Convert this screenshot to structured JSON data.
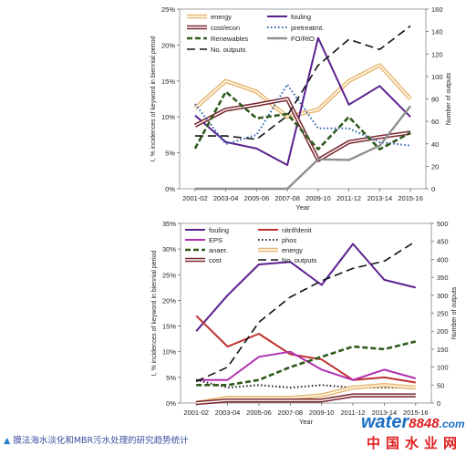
{
  "caption": "膜法海水淡化和MBR污水处理的研究趋势统计",
  "watermark": {
    "part1": "water",
    "part2": "8848",
    "part3": ".com",
    "cn": "中国水业网"
  },
  "chart_data": [
    {
      "type": "line",
      "categories": [
        "2001-02",
        "2003-04",
        "2005-06",
        "2007-08",
        "2009-10",
        "2011-12",
        "2013-14",
        "2015-16"
      ],
      "xlabel": "Year",
      "ylabel": "I, % incidences of keyword in biennial period",
      "y2label": "Number of outputs",
      "ylim": [
        0,
        25
      ],
      "yticks": [
        "0%",
        "5%",
        "10%",
        "15%",
        "20%",
        "25%"
      ],
      "y2lim": [
        0,
        160
      ],
      "y2ticks": [
        "0",
        "20",
        "40",
        "60",
        "80",
        "100",
        "120",
        "140",
        "160"
      ],
      "legend_cols": 2,
      "series": [
        {
          "name": "energy",
          "color": "#e8b870",
          "style": "double",
          "axis": "left",
          "values": [
            11.2,
            15.0,
            13.5,
            10.0,
            11.0,
            15.0,
            17.2,
            12.5
          ]
        },
        {
          "name": "fouling",
          "color": "#5a2090",
          "style": "solid",
          "axis": "left",
          "values": [
            10.2,
            6.5,
            5.6,
            3.3,
            21.0,
            11.7,
            14.3,
            10.0
          ]
        },
        {
          "name": "cost/econ",
          "color": "#7a2830",
          "style": "double",
          "axis": "left",
          "values": [
            8.8,
            11.0,
            11.7,
            12.5,
            4.0,
            6.5,
            7.2,
            7.8
          ]
        },
        {
          "name": "pretreatmt.",
          "color": "#2a5fb0",
          "style": "dotted",
          "axis": "left",
          "values": [
            11.8,
            6.2,
            7.5,
            14.5,
            8.4,
            8.4,
            6.5,
            6.0
          ]
        },
        {
          "name": "Renewables",
          "color": "#2e5a1e",
          "style": "dashed",
          "axis": "left",
          "values": [
            5.6,
            13.5,
            9.8,
            10.4,
            5.5,
            10.0,
            5.5,
            7.8
          ]
        },
        {
          "name": "FO/RtO",
          "color": "#909090",
          "style": "thick",
          "axis": "left",
          "values": [
            0,
            0,
            0,
            0,
            4.1,
            4.0,
            6.0,
            11.5
          ]
        },
        {
          "name": "No. outputs",
          "color": "#111111",
          "style": "longdash",
          "axis": "right",
          "values": [
            47,
            47,
            44,
            65,
            110,
            133,
            124,
            145
          ]
        }
      ]
    },
    {
      "type": "line",
      "categories": [
        "2001-02",
        "2003-04",
        "2005-06",
        "2007-08",
        "2009-10",
        "2011-12",
        "2013-14",
        "2015-16"
      ],
      "xlabel": "Year",
      "ylabel": "I, % incidences of keyword in biennial period",
      "y2label": "Number of outputs",
      "ylim": [
        0,
        35
      ],
      "yticks": [
        "0%",
        "5%",
        "10%",
        "15%",
        "20%",
        "25%",
        "30%",
        "35%"
      ],
      "y2lim": [
        0,
        500
      ],
      "y2ticks": [
        "0",
        "50",
        "100",
        "150",
        "200",
        "250",
        "300",
        "350",
        "400",
        "450",
        "500"
      ],
      "legend_cols": 2,
      "series": [
        {
          "name": "fouling",
          "color": "#5a2090",
          "style": "solid",
          "axis": "left",
          "values": [
            14.0,
            21.0,
            27.0,
            27.5,
            23.0,
            31.0,
            24.0,
            22.5
          ]
        },
        {
          "name": "nitrif/denit",
          "color": "#c03030",
          "style": "solid",
          "axis": "left",
          "values": [
            17.0,
            11.0,
            13.5,
            9.5,
            8.5,
            4.5,
            5.0,
            4.0
          ]
        },
        {
          "name": "EPS",
          "color": "#b030b0",
          "style": "solid",
          "axis": "left",
          "values": [
            4.5,
            4.5,
            9.0,
            10.0,
            6.5,
            4.5,
            6.5,
            4.8
          ]
        },
        {
          "name": "phos",
          "color": "#222222",
          "style": "dotted",
          "axis": "left",
          "values": [
            4.5,
            3.0,
            3.5,
            3.0,
            3.5,
            3.0,
            3.0,
            3.0
          ]
        },
        {
          "name": "anaer.",
          "color": "#2e5a1e",
          "style": "dashed",
          "axis": "left",
          "values": [
            3.5,
            3.5,
            4.5,
            7.0,
            9.0,
            11.0,
            10.5,
            12.0
          ]
        },
        {
          "name": "energy",
          "color": "#e8b870",
          "style": "double",
          "axis": "left",
          "values": [
            0,
            1.0,
            1.0,
            1.0,
            1.5,
            3.0,
            3.5,
            3.0
          ]
        },
        {
          "name": "cost",
          "color": "#7a2830",
          "style": "double",
          "axis": "left",
          "values": [
            0,
            0.5,
            0.5,
            0.5,
            0.5,
            1.5,
            1.5,
            1.5
          ]
        },
        {
          "name": "No. outputs",
          "color": "#111111",
          "style": "longdash",
          "axis": "right",
          "values": [
            60,
            100,
            225,
            295,
            340,
            375,
            395,
            450
          ]
        }
      ]
    }
  ]
}
